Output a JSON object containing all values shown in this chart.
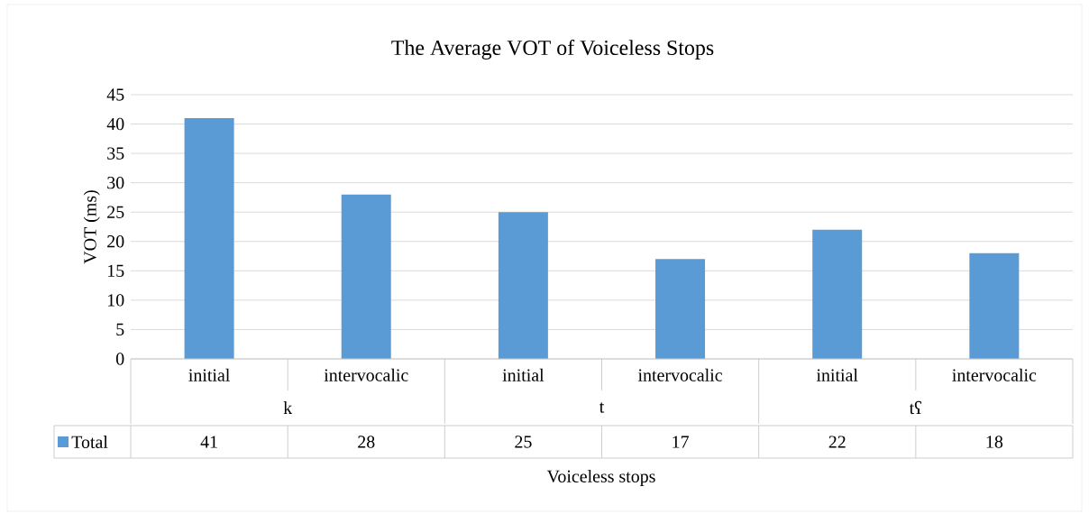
{
  "chart_data": {
    "type": "bar",
    "title": "The Average VOT of Voiceless Stops",
    "xlabel": "Voiceless stops",
    "ylabel": "VOT (ms)",
    "categories": [
      "initial",
      "intervocalic",
      "initial",
      "intervocalic",
      "initial",
      "intervocalic"
    ],
    "annotations": [
      "k",
      "t",
      "tʕ"
    ],
    "series": [
      {
        "name": "Total",
        "color": "#5b9bd5",
        "values": [
          41,
          28,
          25,
          17,
          22,
          18
        ]
      }
    ],
    "ylim": [
      0,
      45
    ],
    "yticks": [
      0,
      5,
      10,
      15,
      20,
      25,
      30,
      35,
      40,
      45
    ],
    "grid": "y",
    "legend": "bottom left",
    "data_labels": true
  }
}
